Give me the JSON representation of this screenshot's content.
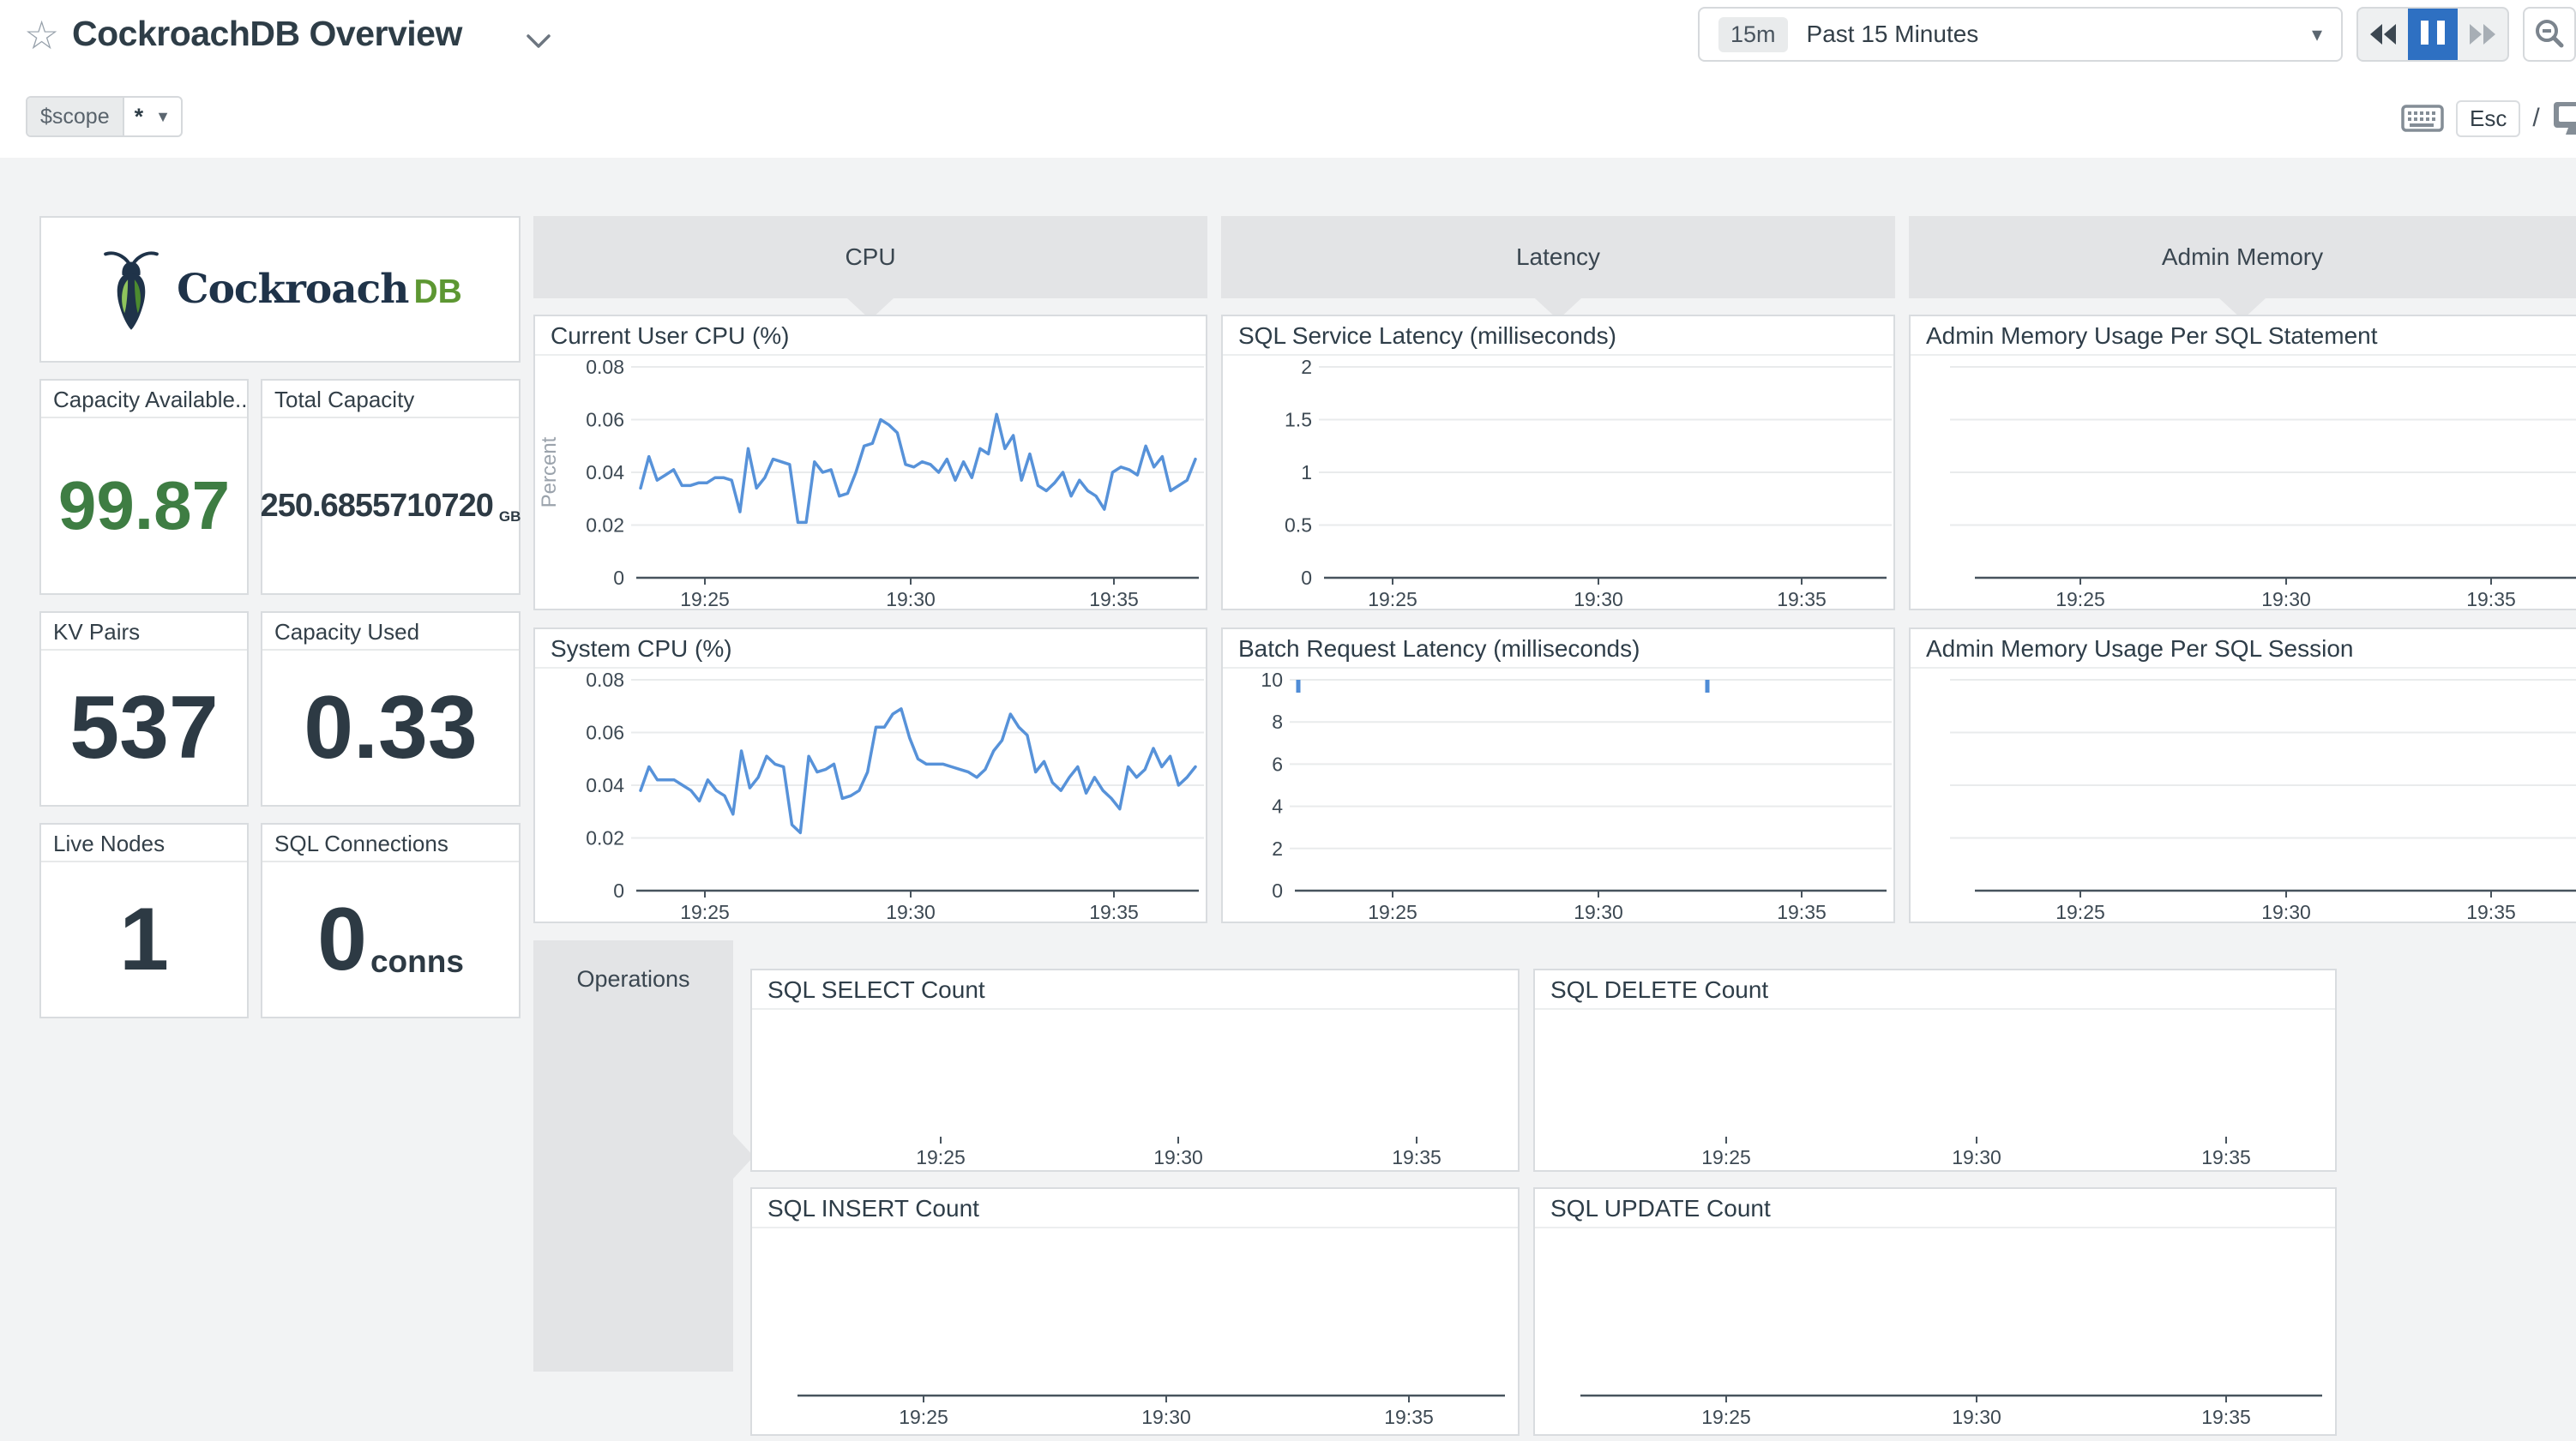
{
  "header": {
    "title": "CockroachDB Overview",
    "time_range": {
      "badge": "15m",
      "label": "Past 15 Minutes"
    },
    "scope": {
      "key": "$scope",
      "value": "*"
    },
    "esc_label": "Esc",
    "slash": "/"
  },
  "logo": {
    "word": "Cockroach",
    "suffix": "DB"
  },
  "stat_cards": [
    {
      "title": "Capacity Available...",
      "value": "99.87",
      "unit": ""
    },
    {
      "title": "Total Capacity",
      "value": "250.6855710720",
      "unit": "GB"
    },
    {
      "title": "KV Pairs",
      "value": "537",
      "unit": ""
    },
    {
      "title": "Capacity Used",
      "value": "0.33",
      "unit": ""
    },
    {
      "title": "Live Nodes",
      "value": "1",
      "unit": ""
    },
    {
      "title": "SQL Connections",
      "value": "0",
      "unit": "conns"
    }
  ],
  "groups": [
    {
      "label": "CPU"
    },
    {
      "label": "Latency"
    },
    {
      "label": "Admin Memory"
    },
    {
      "label": "Operations"
    }
  ],
  "colors": {
    "line_blue": "#5792d9",
    "accent_blue": "#2e70c2",
    "stat_green": "#3e7d43",
    "logo_navy": "#1f3349",
    "logo_green": "#5d9732"
  },
  "chart_data": [
    {
      "id": "current-user-cpu",
      "type": "line",
      "title": "Current User CPU (%)",
      "ylabel": "Percent",
      "ymax": 0.08,
      "top_y": 13,
      "grid": {
        "x0": 112,
        "x1": 780,
        "ys": [
          13,
          74.5,
          136,
          197.5
        ]
      },
      "ylabels": {
        "x": 104,
        "items": [
          {
            "y": 13,
            "t": "0.08"
          },
          {
            "y": 74.5,
            "t": "0.06"
          },
          {
            "y": 136,
            "t": "0.04"
          },
          {
            "y": 197.5,
            "t": "0.02"
          },
          {
            "y": 259,
            "t": "0"
          }
        ]
      },
      "axis": {
        "y": 259,
        "x0": 118,
        "x1": 774
      },
      "ticks": {
        "xs": [
          198,
          438,
          675
        ],
        "labels": [
          "19:25",
          "19:30",
          "19:35"
        ],
        "label_y": 292
      },
      "series": {
        "color": "#5792d9",
        "x0": 123,
        "x1": 770,
        "values": [
          0.034,
          0.046,
          0.037,
          0.039,
          0.041,
          0.035,
          0.035,
          0.036,
          0.036,
          0.038,
          0.038,
          0.037,
          0.025,
          0.049,
          0.034,
          0.038,
          0.045,
          0.044,
          0.043,
          0.021,
          0.021,
          0.044,
          0.04,
          0.041,
          0.031,
          0.032,
          0.04,
          0.05,
          0.051,
          0.06,
          0.058,
          0.055,
          0.043,
          0.042,
          0.044,
          0.043,
          0.04,
          0.045,
          0.037,
          0.044,
          0.038,
          0.049,
          0.047,
          0.062,
          0.049,
          0.054,
          0.037,
          0.047,
          0.035,
          0.033,
          0.036,
          0.04,
          0.031,
          0.037,
          0.033,
          0.031,
          0.026,
          0.04,
          0.042,
          0.041,
          0.039,
          0.05,
          0.042,
          0.046,
          0.033,
          0.035,
          0.037,
          0.045
        ]
      }
    },
    {
      "id": "system-cpu",
      "type": "line",
      "title": "System CPU (%)",
      "ymax": 0.08,
      "top_y": 13,
      "grid": {
        "x0": 112,
        "x1": 780,
        "ys": [
          13,
          74.5,
          136,
          197.5
        ]
      },
      "ylabels": {
        "x": 104,
        "items": [
          {
            "y": 13,
            "t": "0.08"
          },
          {
            "y": 74.5,
            "t": "0.06"
          },
          {
            "y": 136,
            "t": "0.04"
          },
          {
            "y": 197.5,
            "t": "0.02"
          },
          {
            "y": 259,
            "t": "0"
          }
        ]
      },
      "axis": {
        "y": 259,
        "x0": 118,
        "x1": 774
      },
      "ticks": {
        "xs": [
          198,
          438,
          675
        ],
        "labels": [
          "19:25",
          "19:30",
          "19:35"
        ],
        "label_y": 292
      },
      "series": {
        "color": "#5792d9",
        "x0": 123,
        "x1": 770,
        "values": [
          0.038,
          0.047,
          0.042,
          0.042,
          0.042,
          0.04,
          0.038,
          0.034,
          0.042,
          0.038,
          0.036,
          0.029,
          0.053,
          0.039,
          0.043,
          0.051,
          0.048,
          0.047,
          0.025,
          0.022,
          0.051,
          0.045,
          0.046,
          0.048,
          0.035,
          0.036,
          0.038,
          0.045,
          0.062,
          0.062,
          0.067,
          0.069,
          0.058,
          0.05,
          0.048,
          0.048,
          0.048,
          0.047,
          0.046,
          0.045,
          0.043,
          0.046,
          0.053,
          0.057,
          0.067,
          0.062,
          0.059,
          0.045,
          0.049,
          0.041,
          0.038,
          0.043,
          0.047,
          0.037,
          0.043,
          0.038,
          0.035,
          0.031,
          0.047,
          0.043,
          0.046,
          0.054,
          0.047,
          0.051,
          0.04,
          0.043,
          0.047
        ]
      }
    },
    {
      "id": "sql-service-latency",
      "type": "line",
      "title": "SQL Service Latency (milliseconds)",
      "ymax": 2,
      "top_y": 13,
      "grid": {
        "x0": 112,
        "x1": 780,
        "ys": [
          13,
          74.5,
          136,
          197.5
        ]
      },
      "ylabels": {
        "x": 104,
        "items": [
          {
            "y": 13,
            "t": "2"
          },
          {
            "y": 74.5,
            "t": "1.5"
          },
          {
            "y": 136,
            "t": "1"
          },
          {
            "y": 197.5,
            "t": "0.5"
          },
          {
            "y": 259,
            "t": "0"
          }
        ]
      },
      "axis": {
        "y": 259,
        "x0": 118,
        "x1": 774
      },
      "ticks": {
        "xs": [
          198,
          438,
          675
        ],
        "labels": [
          "19:25",
          "19:30",
          "19:35"
        ],
        "label_y": 292
      }
    },
    {
      "id": "batch-request-latency",
      "type": "line",
      "title": "Batch Request Latency (milliseconds)",
      "ymax": 10,
      "top_y": 13,
      "grid": {
        "x0": 78,
        "x1": 780,
        "ys": [
          13,
          62.2,
          111.4,
          160.6,
          209.8
        ]
      },
      "ylabels": {
        "x": 70,
        "items": [
          {
            "y": 13,
            "t": "10"
          },
          {
            "y": 62.2,
            "t": "8"
          },
          {
            "y": 111.4,
            "t": "6"
          },
          {
            "y": 160.6,
            "t": "4"
          },
          {
            "y": 209.8,
            "t": "2"
          },
          {
            "y": 259,
            "t": "0"
          }
        ]
      },
      "axis": {
        "y": 259,
        "x0": 84,
        "x1": 774
      },
      "ticks": {
        "xs": [
          198,
          438,
          675
        ],
        "labels": [
          "19:25",
          "19:30",
          "19:35"
        ],
        "label_y": 292
      },
      "markers": [
        {
          "x": 88,
          "y0": 13,
          "y1": 28,
          "value": 10
        },
        {
          "x": 565,
          "y0": 13,
          "y1": 28,
          "value": 10
        }
      ],
      "marker_color": "#4f8cd6"
    },
    {
      "id": "admin-memory-statement",
      "type": "line",
      "title": "Admin Memory Usage Per SQL Statement",
      "grid": {
        "x0": 46,
        "ys": [
          13,
          74.5,
          136,
          197.5
        ]
      },
      "axis": {
        "y": 259,
        "x0": 75
      },
      "ticks": {
        "xs": [
          198,
          438,
          677
        ],
        "labels": [
          "19:25",
          "19:30",
          "19:35"
        ],
        "label_y": 292
      }
    },
    {
      "id": "admin-memory-session",
      "type": "line",
      "title": "Admin Memory Usage Per SQL Session",
      "grid": {
        "x0": 46,
        "ys": [
          13,
          74.5,
          136,
          197.5
        ]
      },
      "axis": {
        "y": 259,
        "x0": 75
      },
      "ticks": {
        "xs": [
          198,
          438,
          677
        ],
        "labels": [
          "19:25",
          "19:30",
          "19:35"
        ],
        "label_y": 292
      }
    },
    {
      "id": "sql-select-count",
      "type": "line",
      "title": "SQL SELECT Count",
      "ticks": {
        "y0": 148,
        "xs": [
          220,
          497,
          775
        ],
        "labels": [
          "19:25",
          "19:30",
          "19:35"
        ],
        "label_y": 180
      }
    },
    {
      "id": "sql-delete-count",
      "type": "line",
      "title": "SQL DELETE Count",
      "ticks": {
        "y0": 148,
        "xs": [
          223,
          515,
          806
        ],
        "labels": [
          "19:25",
          "19:30",
          "19:35"
        ],
        "label_y": 180
      }
    },
    {
      "id": "sql-insert-count",
      "type": "line",
      "title": "SQL INSERT Count",
      "axis": {
        "y": 195,
        "x0": 53,
        "x1": 878
      },
      "ticks": {
        "xs": [
          200,
          483,
          766
        ],
        "labels": [
          "19:25",
          "19:30",
          "19:35"
        ],
        "label_y": 228
      }
    },
    {
      "id": "sql-update-count",
      "type": "line",
      "title": "SQL UPDATE Count",
      "axis": {
        "y": 195,
        "x0": 53,
        "x1": 918
      },
      "ticks": {
        "xs": [
          223,
          515,
          806
        ],
        "labels": [
          "19:25",
          "19:30",
          "19:35"
        ],
        "label_y": 228
      }
    }
  ]
}
